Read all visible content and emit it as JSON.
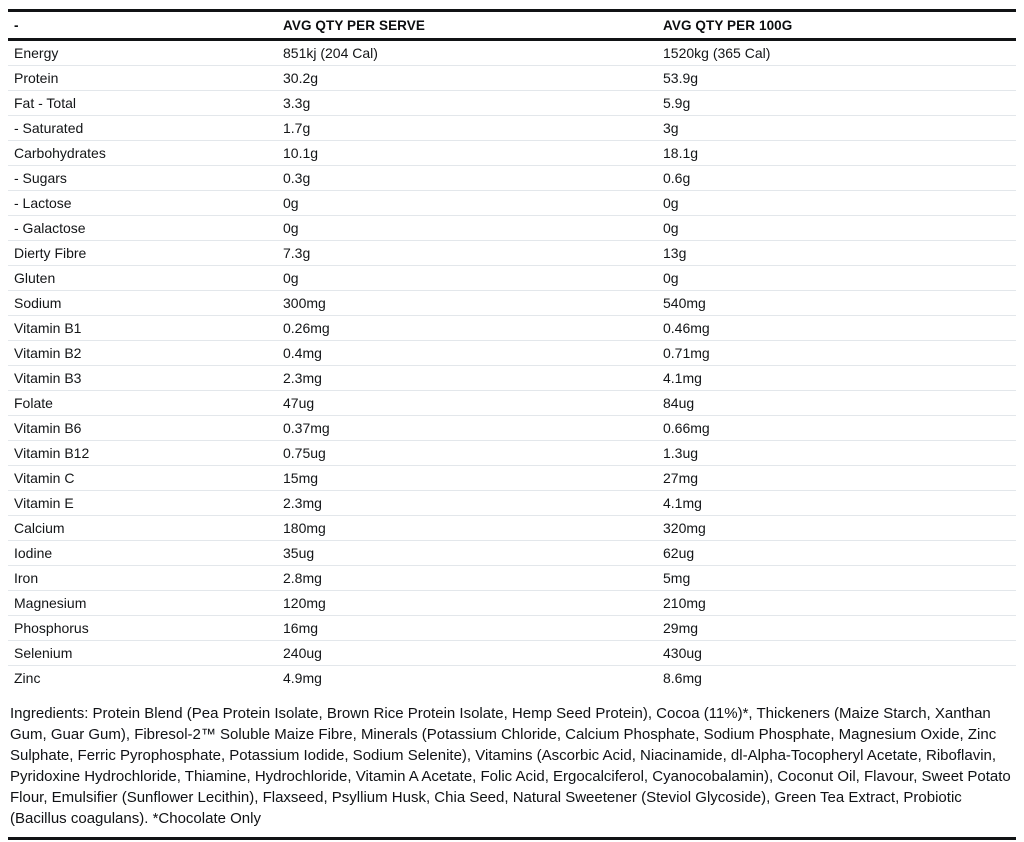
{
  "table": {
    "headers": [
      "-",
      "AVG QTY PER SERVE",
      "AVG QTY PER 100G"
    ],
    "rows": [
      [
        "Energy",
        "851kj (204 Cal)",
        "1520kg (365 Cal)"
      ],
      [
        "Protein",
        "30.2g",
        "53.9g"
      ],
      [
        "Fat - Total",
        "3.3g",
        "5.9g"
      ],
      [
        "- Saturated",
        "1.7g",
        "3g"
      ],
      [
        "Carbohydrates",
        "10.1g",
        "18.1g"
      ],
      [
        "- Sugars",
        "0.3g",
        "0.6g"
      ],
      [
        "- Lactose",
        "0g",
        "0g"
      ],
      [
        "- Galactose",
        "0g",
        "0g"
      ],
      [
        "Dierty Fibre",
        "7.3g",
        "13g"
      ],
      [
        "Gluten",
        "0g",
        "0g"
      ],
      [
        "Sodium",
        "300mg",
        "540mg"
      ],
      [
        "Vitamin B1",
        "0.26mg",
        "0.46mg"
      ],
      [
        "Vitamin B2",
        "0.4mg",
        "0.71mg"
      ],
      [
        "Vitamin B3",
        "2.3mg",
        "4.1mg"
      ],
      [
        "Folate",
        "47ug",
        "84ug"
      ],
      [
        "Vitamin B6",
        "0.37mg",
        "0.66mg"
      ],
      [
        "Vitamin B12",
        "0.75ug",
        "1.3ug"
      ],
      [
        "Vitamin C",
        "15mg",
        "27mg"
      ],
      [
        "Vitamin E",
        "2.3mg",
        "4.1mg"
      ],
      [
        "Calcium",
        "180mg",
        "320mg"
      ],
      [
        "Iodine",
        "35ug",
        "62ug"
      ],
      [
        "Iron",
        "2.8mg",
        "5mg"
      ],
      [
        "Magnesium",
        "120mg",
        "210mg"
      ],
      [
        "Phosphorus",
        "16mg",
        "29mg"
      ],
      [
        "Selenium",
        "240ug",
        "430ug"
      ],
      [
        "Zinc",
        "4.9mg",
        "8.6mg"
      ]
    ]
  },
  "ingredients": "Ingredients: Protein Blend (Pea Protein Isolate, Brown Rice Protein Isolate, Hemp Seed Protein), Cocoa (11%)*, Thickeners (Maize Starch, Xanthan Gum, Guar Gum), Fibresol-2™ Soluble Maize Fibre, Minerals (Potassium Chloride, Calcium Phosphate, Sodium Phosphate, Magnesium Oxide, Zinc Sulphate, Ferric Pyrophosphate, Potassium Iodide, Sodium Selenite), Vitamins (Ascorbic Acid, Niacinamide, dl-Alpha-Tocopheryl Acetate, Riboflavin, Pyridoxine Hydrochloride, Thiamine, Hydrochloride, Vitamin A Acetate, Folic Acid, Ergocalciferol, Cyanocobalamin), Coconut Oil, Flavour, Sweet Potato Flour, Emulsifier (Sunflower Lecithin), Flaxseed, Psyllium Husk, Chia Seed, Natural Sweetener (Steviol Glycoside), Green Tea Extract, Probiotic (Bacillus coagulans). *Chocolate Only",
  "colors": {
    "text": "#101215",
    "thick_rule": "#111315",
    "row_divider": "#e3e7eb",
    "background": "#ffffff"
  }
}
